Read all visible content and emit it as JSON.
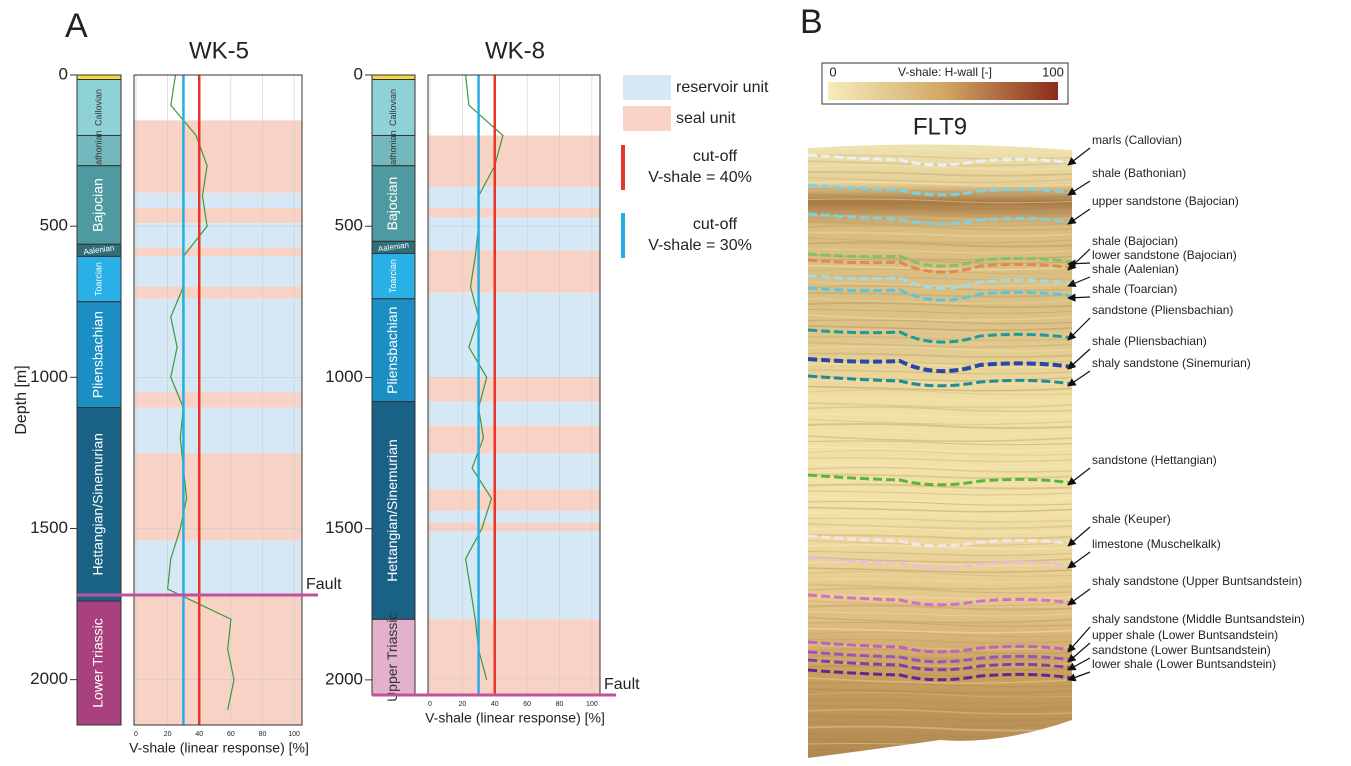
{
  "panel_a": {
    "label": "A",
    "depth_axis_label": "Depth [m]",
    "wells": [
      {
        "name": "WK-5",
        "ylim": [
          0,
          2150
        ],
        "yticks": [
          0,
          500,
          1000,
          1500,
          2000
        ],
        "xlim": [
          0,
          105
        ],
        "xticks": [
          0,
          20,
          40,
          60,
          80,
          100
        ],
        "x_label": "V-shale (linear response) [%]",
        "formations": [
          {
            "top": 0,
            "base": 15,
            "color": "#f3d548"
          },
          {
            "name": "Callovian",
            "top": 15,
            "base": 200,
            "color": "#8fd2d6",
            "label_color": "#333"
          },
          {
            "name": "Bathonian",
            "top": 200,
            "base": 300,
            "color": "#72b8bd",
            "label_color": "#333"
          },
          {
            "name": "Bajocian",
            "top": 300,
            "base": 560,
            "color": "#4f9aa0",
            "label_color": "#fff"
          },
          {
            "name": "Aalenian",
            "top": 560,
            "base": 600,
            "color": "#2f6e7a",
            "label_color": "#fff"
          },
          {
            "name": "Toarcian",
            "top": 600,
            "base": 750,
            "color": "#29b0e6",
            "label_color": "#fff"
          },
          {
            "name": "Pliensbachian",
            "top": 750,
            "base": 1100,
            "color": "#1b8fc3",
            "label_color": "#fff"
          },
          {
            "name": "Hettangian/Sinemurian",
            "top": 1100,
            "base": 1740,
            "color": "#1a6285",
            "label_color": "#fff"
          },
          {
            "name": "Lower Triassic",
            "top": 1740,
            "base": 2150,
            "color": "#a8417e",
            "label_color": "#fff"
          }
        ],
        "intervals": [
          {
            "type": "seal",
            "top": 150,
            "base": 390
          },
          {
            "type": "reservoir",
            "top": 390,
            "base": 440
          },
          {
            "type": "seal",
            "top": 440,
            "base": 490
          },
          {
            "type": "reservoir",
            "top": 490,
            "base": 570
          },
          {
            "type": "seal",
            "top": 570,
            "base": 600
          },
          {
            "type": "reservoir",
            "top": 600,
            "base": 700
          },
          {
            "type": "seal",
            "top": 700,
            "base": 740
          },
          {
            "type": "reservoir",
            "top": 740,
            "base": 1050
          },
          {
            "type": "seal",
            "top": 1050,
            "base": 1100
          },
          {
            "type": "reservoir",
            "top": 1100,
            "base": 1250
          },
          {
            "type": "seal",
            "top": 1250,
            "base": 1540
          },
          {
            "type": "reservoir",
            "top": 1540,
            "base": 1720
          },
          {
            "type": "seal",
            "top": 1720,
            "base": 2150
          }
        ],
        "depths": [
          0,
          100,
          200,
          300,
          400,
          500,
          600,
          700,
          800,
          900,
          1000,
          1100,
          1200,
          1300,
          1400,
          1500,
          1600,
          1700,
          1800,
          1900,
          2000,
          2100
        ],
        "vshale": [
          25,
          22,
          38,
          45,
          42,
          45,
          30,
          30,
          22,
          26,
          22,
          30,
          28,
          30,
          32,
          28,
          22,
          20,
          60,
          58,
          62,
          58
        ],
        "cutoffs": [
          {
            "value": 40,
            "color": "#e8352b"
          },
          {
            "value": 30,
            "color": "#27aee0"
          }
        ],
        "fault_depth": 1720,
        "fault_label": "Fault",
        "fault_color": "#c0519a",
        "curve_color": "#3a9a3a"
      },
      {
        "name": "WK-8",
        "ylim": [
          0,
          2050
        ],
        "yticks": [
          0,
          500,
          1000,
          1500,
          2000
        ],
        "xlim": [
          0,
          105
        ],
        "xticks": [
          0,
          20,
          40,
          60,
          80,
          100
        ],
        "x_label": "V-shale (linear response) [%]",
        "formations": [
          {
            "top": 0,
            "base": 15,
            "color": "#f3d548"
          },
          {
            "name": "Callovian",
            "top": 15,
            "base": 200,
            "color": "#8fd2d6",
            "label_color": "#333"
          },
          {
            "name": "Bathonian",
            "top": 200,
            "base": 300,
            "color": "#72b8bd",
            "label_color": "#333"
          },
          {
            "name": "Bajocian",
            "top": 300,
            "base": 550,
            "color": "#4f9aa0",
            "label_color": "#fff"
          },
          {
            "name": "Aalenian",
            "top": 550,
            "base": 590,
            "color": "#2f6e7a",
            "label_color": "#fff"
          },
          {
            "name": "Toarcian",
            "top": 590,
            "base": 740,
            "color": "#29b0e6",
            "label_color": "#fff"
          },
          {
            "name": "Pliensbachian",
            "top": 740,
            "base": 1080,
            "color": "#1b8fc3",
            "label_color": "#fff"
          },
          {
            "name": "Hettangian/Sinemurian",
            "top": 1080,
            "base": 1800,
            "color": "#1a6285",
            "label_color": "#fff"
          },
          {
            "name": "Upper Triassic",
            "top": 1800,
            "base": 2050,
            "color": "#e3b1cb",
            "label_color": "#333"
          }
        ],
        "intervals": [
          {
            "type": "seal",
            "top": 200,
            "base": 370
          },
          {
            "type": "reservoir",
            "top": 370,
            "base": 440
          },
          {
            "type": "seal",
            "top": 440,
            "base": 470
          },
          {
            "type": "reservoir",
            "top": 470,
            "base": 580
          },
          {
            "type": "seal",
            "top": 580,
            "base": 720
          },
          {
            "type": "reservoir",
            "top": 720,
            "base": 1000
          },
          {
            "type": "seal",
            "top": 1000,
            "base": 1080
          },
          {
            "type": "reservoir",
            "top": 1080,
            "base": 1160
          },
          {
            "type": "seal",
            "top": 1160,
            "base": 1250
          },
          {
            "type": "reservoir",
            "top": 1250,
            "base": 1370
          },
          {
            "type": "seal",
            "top": 1370,
            "base": 1440
          },
          {
            "type": "reservoir",
            "top": 1440,
            "base": 1480
          },
          {
            "type": "seal",
            "top": 1480,
            "base": 1510
          },
          {
            "type": "reservoir",
            "top": 1510,
            "base": 1800
          },
          {
            "type": "seal",
            "top": 1800,
            "base": 2050
          }
        ],
        "depths": [
          0,
          100,
          200,
          300,
          400,
          500,
          600,
          700,
          800,
          900,
          1000,
          1100,
          1200,
          1300,
          1400,
          1500,
          1600,
          1700,
          1800,
          1900,
          2000
        ],
        "vshale": [
          22,
          24,
          45,
          40,
          30,
          30,
          28,
          25,
          30,
          24,
          35,
          30,
          33,
          26,
          38,
          32,
          22,
          25,
          28,
          30,
          35
        ],
        "cutoffs": [
          {
            "value": 40,
            "color": "#e8352b"
          },
          {
            "value": 30,
            "color": "#27aee0"
          }
        ],
        "fault_depth": 2050,
        "fault_label": "Fault",
        "fault_color": "#c0519a",
        "curve_color": "#3a9a3a"
      }
    ],
    "legend": {
      "reservoir": {
        "label": "reservoir unit",
        "color": "#d6e8f5"
      },
      "seal": {
        "label": "seal unit",
        "color": "#f9d2c6"
      },
      "cutoffs": [
        {
          "line1": "cut-off",
          "line2": "V-shale = 40%",
          "color": "#e8352b"
        },
        {
          "line1": "cut-off",
          "line2": "V-shale = 30%",
          "color": "#27aee0"
        }
      ]
    }
  },
  "panel_b": {
    "label": "B",
    "title": "FLT9",
    "colorbar": {
      "label": "V-shale: H-wall [-]",
      "min": "0",
      "max": "100"
    },
    "horizons": [
      {
        "label": "marls (Callovian)",
        "color": "#e8f0f4"
      },
      {
        "label": "shale (Bathonian)",
        "color": "#7fd0e0"
      },
      {
        "label": "upper sandstone (Bajocian)",
        "color": "#7fd0e0"
      },
      {
        "label": "shale (Bajocian)",
        "color": "#e08a50"
      },
      {
        "label": "lower sandstone (Bajocian)",
        "color": "#7cc36a"
      },
      {
        "label": "shale (Aalenian)",
        "color": "#9fdce6"
      },
      {
        "label": "shale (Toarcian)",
        "color": "#5cc4e0"
      },
      {
        "label": "sandstone (Pliensbachian)",
        "color": "#1e9a9a"
      },
      {
        "label": "shale (Pliensbachian)",
        "color": "#2748a8"
      },
      {
        "label": "shaly sandstone (Sinemurian)",
        "color": "#1e8a9a"
      },
      {
        "label": "sandstone (Hettangian)",
        "color": "#5ab53c"
      },
      {
        "label": "shale (Keuper)",
        "color": "#f2e4ea"
      },
      {
        "label": "limestone (Muschelkalk)",
        "color": "#e6c0d8"
      },
      {
        "label": "shaly sandstone (Upper Buntsandstein)",
        "color": "#d070c8"
      },
      {
        "label": "shaly sandstone (Middle Buntsandstein)",
        "color": "#c060c0"
      },
      {
        "label": "upper shale (Lower Buntsandstein)",
        "color": "#a050b8"
      },
      {
        "label": "sandstone (Lower Buntsandstein)",
        "color": "#8040a8"
      },
      {
        "label": "lower shale (Lower Buntsandstein)",
        "color": "#602890"
      }
    ]
  }
}
